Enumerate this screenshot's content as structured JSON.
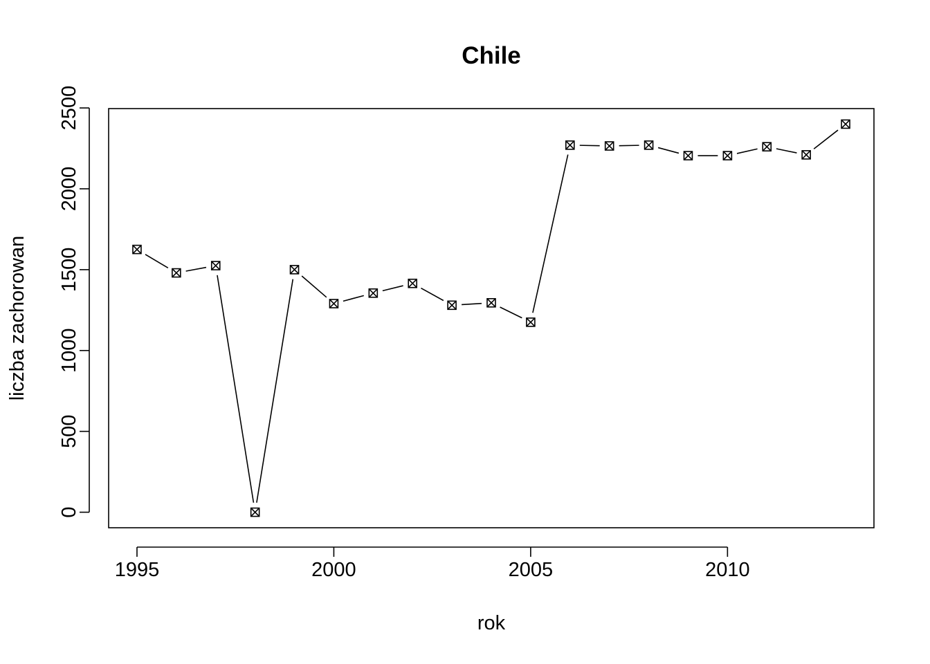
{
  "chart_data": {
    "type": "line",
    "title": "Chile",
    "xlabel": "rok",
    "ylabel": "liczba zachorowan",
    "x": [
      1995,
      1996,
      1997,
      1998,
      1999,
      2000,
      2001,
      2002,
      2003,
      2004,
      2005,
      2006,
      2007,
      2008,
      2009,
      2010,
      2011,
      2012,
      2013
    ],
    "series": [
      {
        "values": [
          1625,
          1480,
          1525,
          0,
          1500,
          1290,
          1355,
          1415,
          1280,
          1295,
          1175,
          2270,
          2265,
          2270,
          2205,
          2205,
          2260,
          2210,
          2400
        ]
      }
    ],
    "xticks": [
      1995,
      2000,
      2005,
      2010
    ],
    "xtick_labels": [
      "1995",
      "2000",
      "2005",
      "2010"
    ],
    "yticks": [
      0,
      500,
      1000,
      1500,
      2000,
      2500
    ],
    "ytick_labels": [
      "0",
      "500",
      "1000",
      "1500",
      "2000",
      "2500"
    ],
    "xlim": [
      1994.28,
      2013.72
    ],
    "ylim": [
      -96,
      2496
    ],
    "marker": "boxed-x",
    "line_style": "solid with gaps at markers",
    "grid": false,
    "legend": "none",
    "colors": {
      "line": "#000000",
      "background": "#ffffff"
    }
  }
}
